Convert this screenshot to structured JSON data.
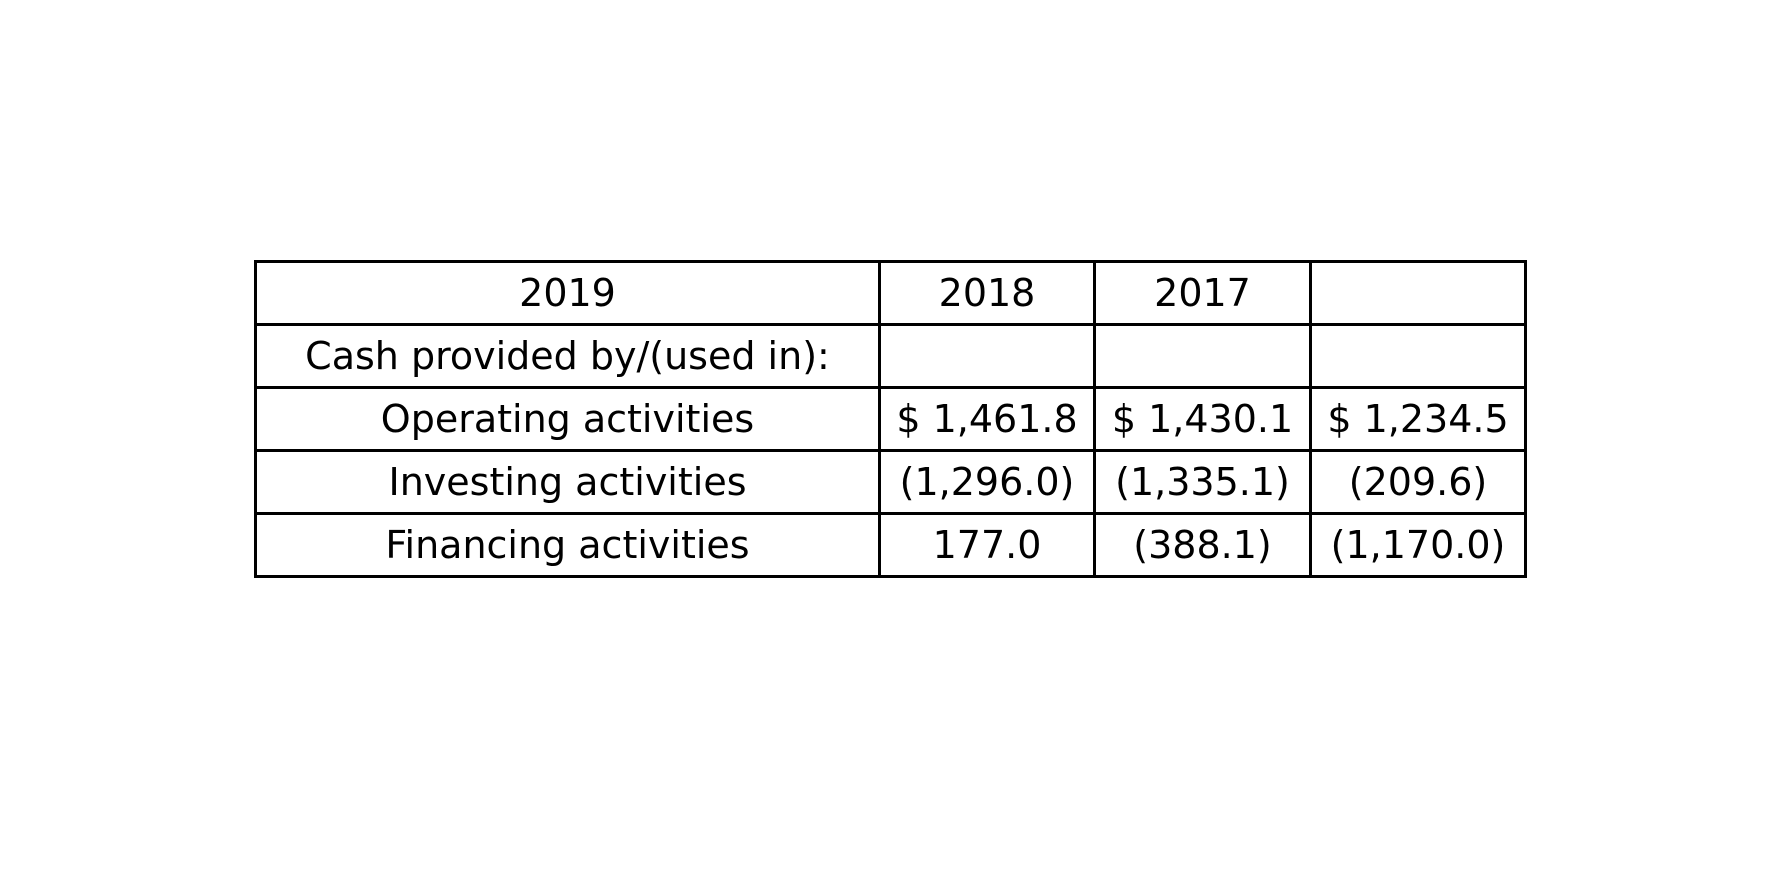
{
  "table": {
    "header": [
      "2019",
      "2018",
      "2017",
      ""
    ],
    "rows": [
      {
        "label": "Cash provided by/(used in):",
        "values": [
          "",
          "",
          ""
        ]
      },
      {
        "label": "Operating activities",
        "values": [
          "$ 1,461.8",
          "$ 1,430.1",
          "$ 1,234.5"
        ]
      },
      {
        "label": "Investing activities",
        "values": [
          "(1,296.0)",
          "(1,335.1)",
          "(209.6)"
        ]
      },
      {
        "label": "Financing activities",
        "values": [
          "177.0",
          "(388.1)",
          "(1,170.0)"
        ]
      }
    ]
  }
}
